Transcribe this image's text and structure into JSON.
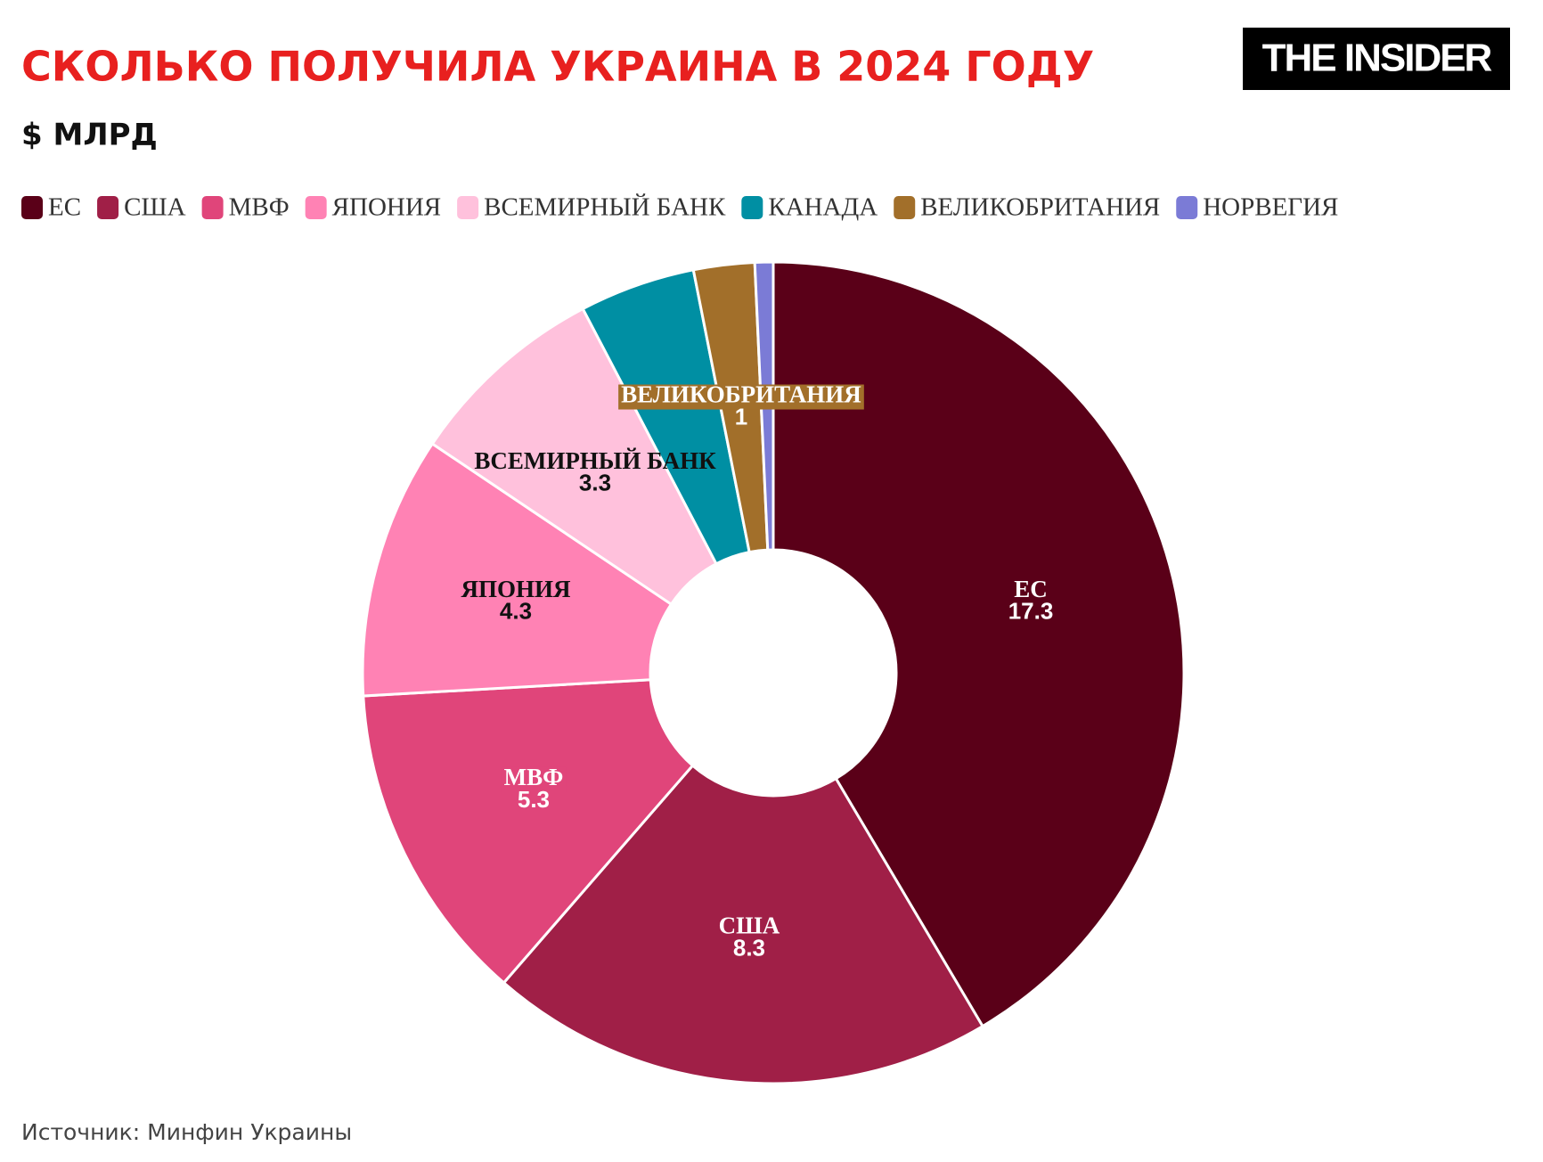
{
  "chart_data": {
    "type": "donut",
    "title": "СКОЛЬКО ПОЛУЧИЛА УКРАИНА В 2024 ГОДУ",
    "subtitle": "$ МЛРД",
    "logo": "THE INSIDER",
    "source": "Источник: Минфин Украины",
    "categories": [
      "ЕС",
      "США",
      "МВФ",
      "ЯПОНИЯ",
      "ВСЕМИРНЫЙ БАНК",
      "КАНАДА",
      "ВЕЛИКОБРИТАНИЯ",
      "НОРВЕГИЯ"
    ],
    "values": [
      17.3,
      8.3,
      5.3,
      4.3,
      3.3,
      1.9,
      1,
      0.3
    ],
    "colors": [
      "#5a0018",
      "#a01f47",
      "#e0457a",
      "#ff82b4",
      "#ffc1dc",
      "#008fa3",
      "#a26f2a",
      "#7b7bd6"
    ],
    "data_labels_hidden": [
      5,
      7
    ],
    "legend": "top-left"
  }
}
